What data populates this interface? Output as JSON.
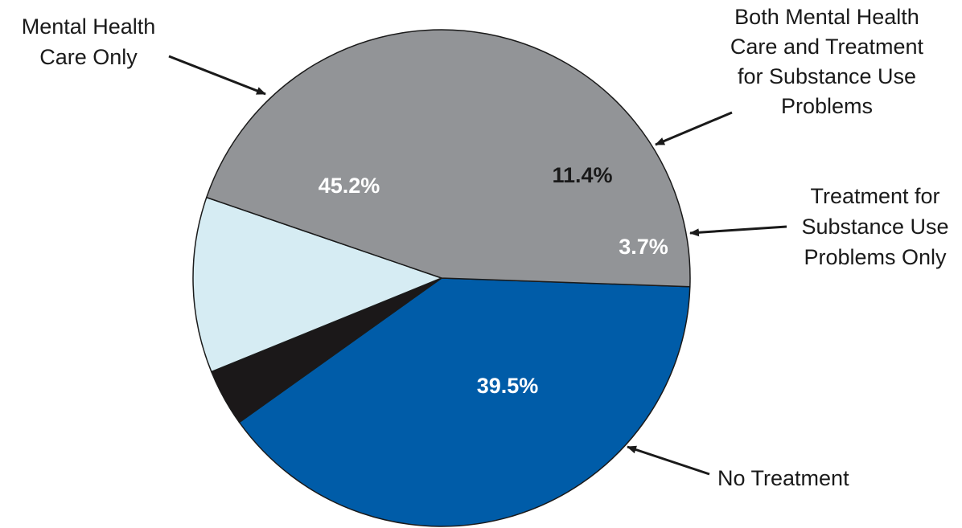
{
  "chart_data": {
    "type": "pie",
    "title": "",
    "slices": [
      {
        "name": "No Treatment",
        "label_lines": [
          "No Treatment"
        ],
        "value": 39.5,
        "value_label": "39.5%",
        "color": "#005ca8",
        "text_color": "#ffffff"
      },
      {
        "name": "Treatment for Substance Use Problems Only",
        "label_lines": [
          "Treatment for",
          "Substance Use",
          "Problems Only"
        ],
        "value": 3.7,
        "value_label": "3.7%",
        "color": "#1b1819",
        "text_color": "#ffffff"
      },
      {
        "name": "Both Mental Health Care and Treatment for Substance Use Problems",
        "label_lines": [
          "Both Mental Health",
          "Care and Treatment",
          "for Substance Use",
          "Problems"
        ],
        "value": 11.4,
        "value_label": "11.4%",
        "color": "#d6ecf3",
        "text_color": "#1a1a1a"
      },
      {
        "name": "Mental Health Care Only",
        "label_lines": [
          "Mental Health",
          "Care Only"
        ],
        "value": 45.2,
        "value_label": "45.2%",
        "color": "#929497",
        "text_color": "#ffffff"
      }
    ],
    "legend": "callout labels with arrows"
  }
}
